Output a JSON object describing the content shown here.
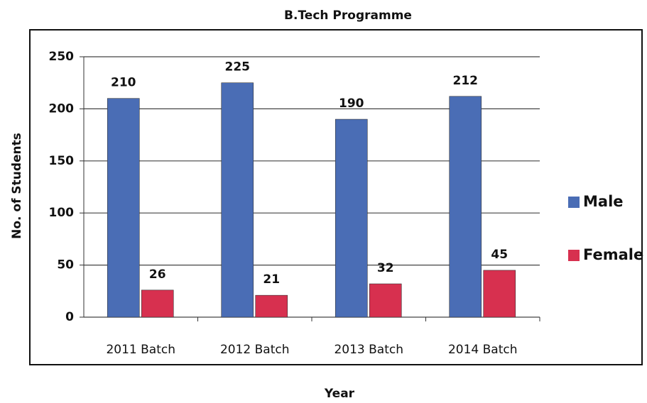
{
  "chart_data": {
    "type": "bar",
    "title": "B.Tech Programme",
    "y_label": "No. of Students",
    "x_label": "Year",
    "categories": [
      "2011 Batch",
      "2012 Batch",
      "2013 Batch",
      "2014 Batch"
    ],
    "series": [
      {
        "name": "Male",
        "color": "#4a6db5",
        "values": [
          210,
          225,
          190,
          212
        ]
      },
      {
        "name": "Female",
        "color": "#d7304f",
        "values": [
          26,
          21,
          32,
          45
        ]
      }
    ],
    "ylim": [
      0,
      250
    ],
    "yticks": [
      0,
      50,
      100,
      150,
      200,
      250
    ],
    "grid": true,
    "legend": "right"
  }
}
